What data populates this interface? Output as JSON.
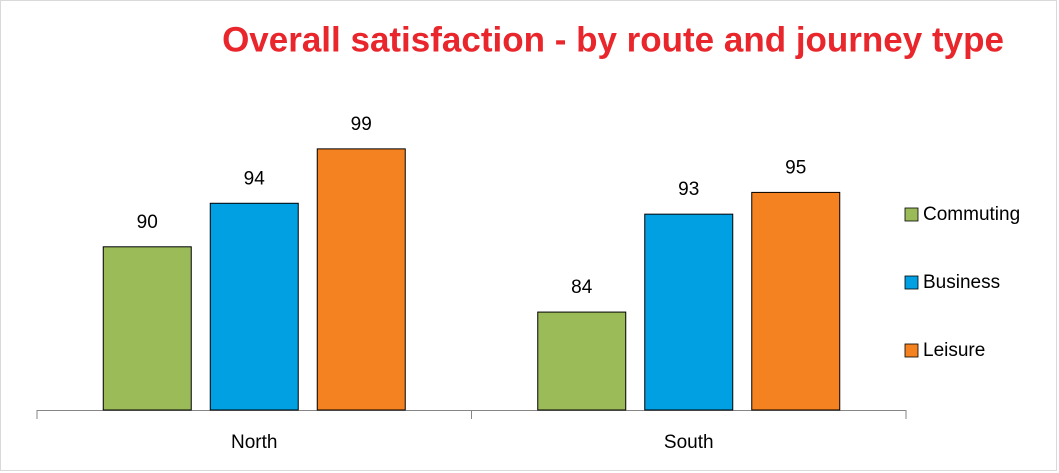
{
  "chart_data": {
    "type": "bar",
    "title": "Overall satisfaction - by route and journey type",
    "categories": [
      "North",
      "South"
    ],
    "series": [
      {
        "name": "Commuting",
        "color": "#9bbb59",
        "values": [
          90,
          84
        ]
      },
      {
        "name": "Business",
        "color": "#00a0e3",
        "values": [
          94,
          93
        ]
      },
      {
        "name": "Leisure",
        "color": "#f58220",
        "values": [
          99,
          95
        ]
      }
    ],
    "ylim": [
      75,
      100
    ],
    "legend": "right"
  }
}
